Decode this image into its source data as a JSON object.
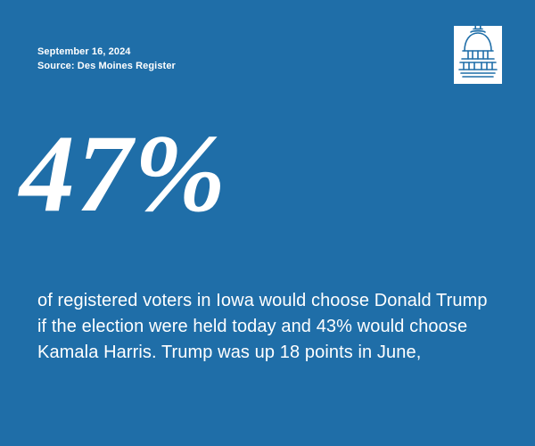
{
  "meta": {
    "date": "September 16, 2024",
    "source": "Source: Des Moines Register"
  },
  "headline": {
    "value": "47%"
  },
  "body": {
    "text": "of registered voters in Iowa would choose Donald Trump if the election were held today and 43% would choose Kamala Harris. Trump was up 18 points in June,"
  },
  "logo": {
    "icon": "capitol-dome-icon"
  },
  "colors": {
    "background": "#1f6ea8",
    "text": "#ffffff"
  }
}
